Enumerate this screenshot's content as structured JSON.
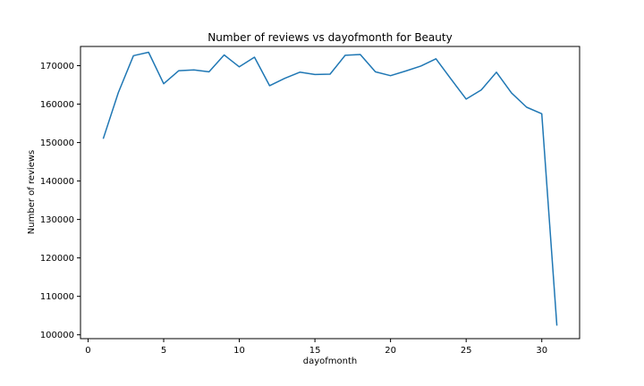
{
  "chart_data": {
    "type": "line",
    "title": "Number of reviews vs dayofmonth for Beauty",
    "xlabel": "dayofmonth",
    "ylabel": "Number of reviews",
    "xlim": [
      -0.5,
      32.5
    ],
    "ylim": [
      99000,
      175000
    ],
    "xticks": [
      0,
      5,
      10,
      15,
      20,
      25,
      30
    ],
    "yticks": [
      100000,
      110000,
      120000,
      130000,
      140000,
      150000,
      160000,
      170000
    ],
    "grid": false,
    "series": [
      {
        "color": "#1f77b4",
        "x": [
          1,
          2,
          3,
          4,
          5,
          6,
          7,
          8,
          9,
          10,
          11,
          12,
          13,
          14,
          15,
          16,
          17,
          18,
          19,
          20,
          21,
          22,
          23,
          24,
          25,
          26,
          27,
          28,
          29,
          30,
          31
        ],
        "y": [
          151000,
          163000,
          172600,
          173500,
          165300,
          168700,
          168900,
          168400,
          172800,
          169700,
          172200,
          164800,
          166700,
          168300,
          167700,
          167800,
          172700,
          172900,
          168400,
          167400,
          168600,
          169900,
          171800,
          166500,
          161300,
          163700,
          168300,
          162900,
          159200,
          157500,
          102400
        ]
      }
    ]
  }
}
